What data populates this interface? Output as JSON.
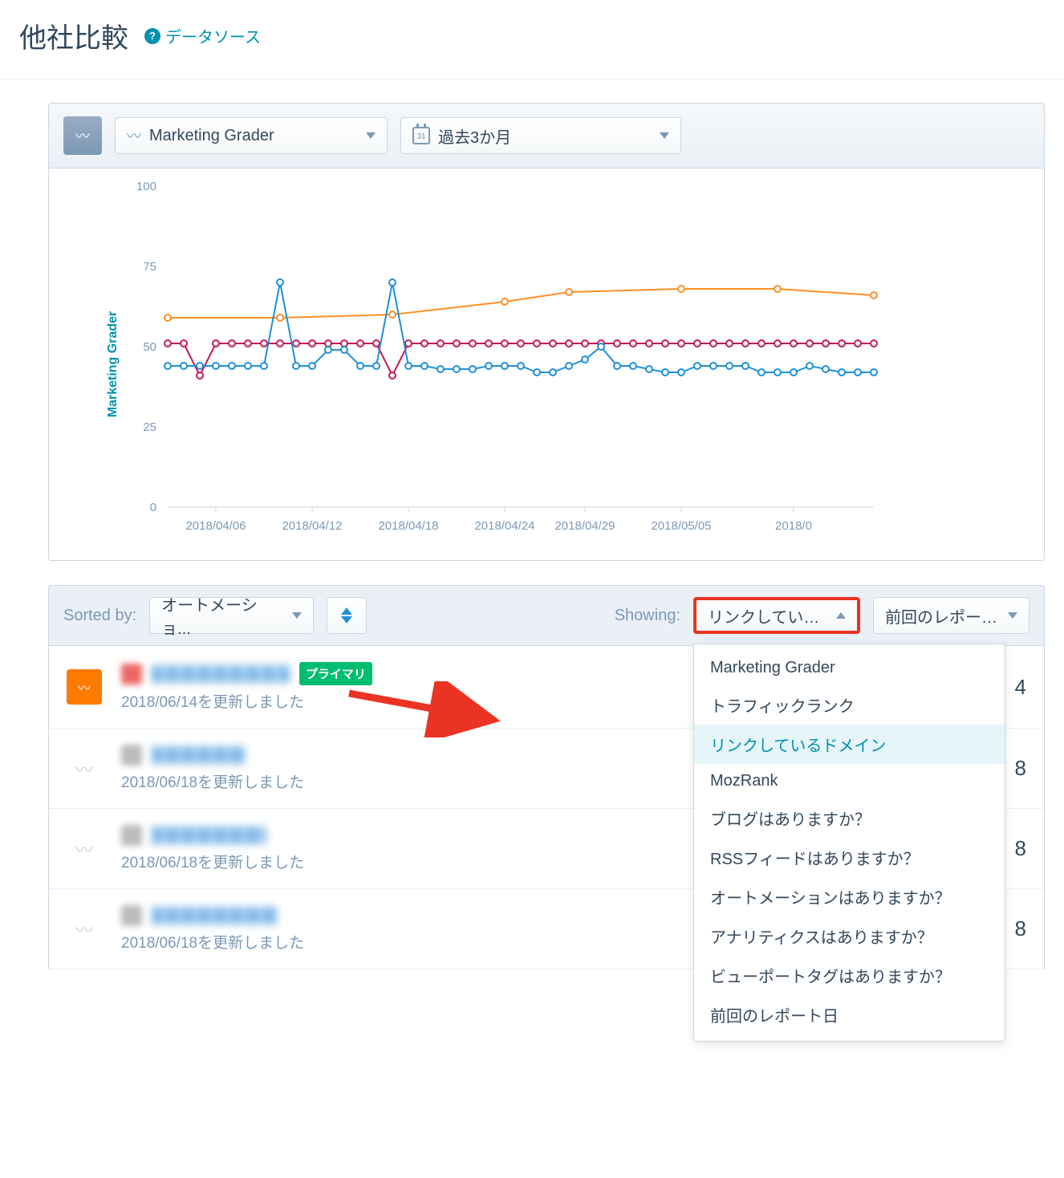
{
  "header": {
    "title": "他社比較",
    "help_link": "データソース"
  },
  "toolbar": {
    "metric_label": "Marketing Grader",
    "date_label": "過去3か月",
    "calendar_day": "31"
  },
  "chart": {
    "type": "line",
    "y_axis_title": "Marketing Grader",
    "ylim": [
      0,
      100
    ],
    "y_ticks": [
      0,
      25,
      50,
      75,
      100
    ],
    "x_labels": [
      "2018/04/06",
      "2018/04/12",
      "2018/04/18",
      "2018/04/24",
      "2018/04/29",
      "2018/05/05",
      "2018/0"
    ],
    "background_color": "#ffffff",
    "axis_color": "#cbd6e2",
    "tick_label_color": "#7c98b6",
    "tick_fontsize": 15,
    "title_fontsize": 16,
    "marker_radius": 4,
    "line_width": 2,
    "series": [
      {
        "name": "orange",
        "color": "#ff8f28",
        "marker": "circle-open",
        "x": [
          0,
          7,
          14,
          21,
          25,
          32,
          38,
          44
        ],
        "y": [
          59,
          59,
          60,
          64,
          67,
          68,
          68,
          66
        ]
      },
      {
        "name": "red",
        "color": "#c2185b",
        "marker": "circle-open",
        "x": [
          0,
          1,
          2,
          3,
          4,
          5,
          6,
          7,
          8,
          9,
          10,
          11,
          12,
          13,
          14,
          15,
          16,
          17,
          18,
          19,
          20,
          21,
          22,
          23,
          24,
          25,
          26,
          27,
          28,
          29,
          30,
          31,
          32,
          33,
          34,
          35,
          36,
          37,
          38,
          39,
          40,
          41,
          42,
          43,
          44
        ],
        "y": [
          51,
          51,
          41,
          51,
          51,
          51,
          51,
          51,
          51,
          51,
          51,
          51,
          51,
          51,
          41,
          51,
          51,
          51,
          51,
          51,
          51,
          51,
          51,
          51,
          51,
          51,
          51,
          51,
          51,
          51,
          51,
          51,
          51,
          51,
          51,
          51,
          51,
          51,
          51,
          51,
          51,
          51,
          51,
          51,
          51
        ]
      },
      {
        "name": "blue",
        "color": "#1f90da",
        "marker": "circle-open",
        "x": [
          0,
          1,
          2,
          3,
          4,
          5,
          6,
          7,
          8,
          9,
          10,
          11,
          12,
          13,
          14,
          15,
          16,
          17,
          18,
          19,
          20,
          21,
          22,
          23,
          24,
          25,
          26,
          27,
          28,
          29,
          30,
          31,
          32,
          33,
          34,
          35,
          36,
          37,
          38,
          39,
          40,
          41,
          42,
          43,
          44
        ],
        "y": [
          44,
          44,
          44,
          44,
          44,
          44,
          44,
          70,
          44,
          44,
          49,
          49,
          44,
          44,
          70,
          44,
          44,
          43,
          43,
          43,
          44,
          44,
          44,
          42,
          42,
          44,
          46,
          50,
          44,
          44,
          43,
          42,
          42,
          44,
          44,
          44,
          44,
          42,
          42,
          42,
          44,
          43,
          42,
          42,
          42
        ]
      }
    ]
  },
  "filter": {
    "sorted_by_label": "Sorted by:",
    "sorted_value": "オートメーショ...",
    "showing_label": "Showing:",
    "showing_value": "リンクしている...",
    "last_report_label": "前回のレポート日"
  },
  "dropdown_items": [
    "Marketing Grader",
    "トラフィックランク",
    "リンクしているドメイン",
    "MozRank",
    "ブログはありますか？",
    "RSSフィードはありますか？",
    "オートメーションはありますか？",
    "アナリティクスはありますか？",
    "ビューポートタグはありますか？",
    "前回のレポート日"
  ],
  "dropdown_selected_index": 2,
  "list": {
    "primary_badge": "プライマリ",
    "rows": [
      {
        "primary": true,
        "updated": "2018/06/14を更新しました",
        "value": "4"
      },
      {
        "primary": false,
        "updated": "2018/06/18を更新しました",
        "value": "8"
      },
      {
        "primary": false,
        "updated": "2018/06/18を更新しました",
        "value": "8"
      },
      {
        "primary": false,
        "updated": "2018/06/18を更新しました",
        "value": "8"
      }
    ]
  },
  "colors": {
    "accent": "#0091ae",
    "highlight_border": "#ea3323",
    "arrow": "#ea3323"
  }
}
